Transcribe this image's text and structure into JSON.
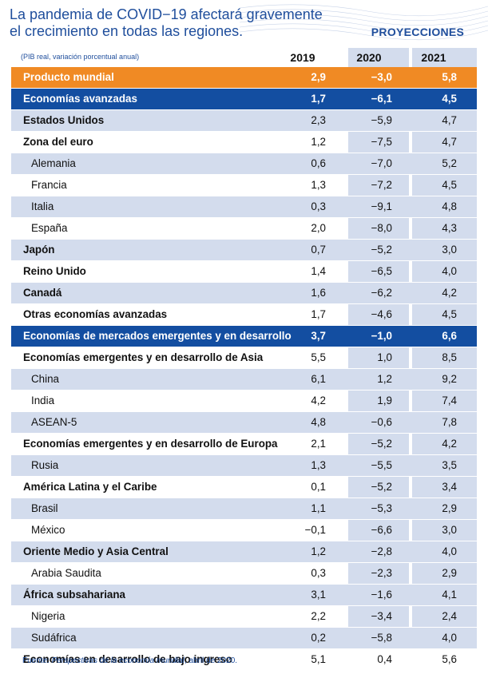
{
  "title_line1": "La pandemia de COVID-19 afectará gravemente",
  "title_line2": "el crecimiento en todas las regiones.",
  "projections_label": "PROYECCIONES",
  "unit_note": "(PIB real, variación porcentual anual)",
  "source_prefix": "Fuente: ",
  "source_title": "Perspectivas de la economía mundial",
  "source_suffix": ", abril de 2020.",
  "colors": {
    "world": "#f08a24",
    "highlight": "#134ea1",
    "shade": "#d3dced",
    "text_blue": "#1f4e9c"
  },
  "chart_data": {
    "type": "table",
    "columns": [
      "2019",
      "2020",
      "2021"
    ],
    "rows": [
      {
        "label": "Producto mundial",
        "values": [
          "2,9",
          "-3,0",
          "5,8"
        ],
        "style": "world"
      },
      {
        "label": "Economías avanzadas",
        "values": [
          "1,7",
          "-6,1",
          "4,5"
        ],
        "style": "adv"
      },
      {
        "label": "Estados Unidos",
        "values": [
          "2,3",
          "-5,9",
          "4,7"
        ],
        "style": "bold"
      },
      {
        "label": "Zona del euro",
        "values": [
          "1,2",
          "-7,5",
          "4,7"
        ],
        "style": "bold"
      },
      {
        "label": "Alemania",
        "values": [
          "0,6",
          "-7,0",
          "5,2"
        ],
        "style": "sub"
      },
      {
        "label": "Francia",
        "values": [
          "1,3",
          "-7,2",
          "4,5"
        ],
        "style": "sub"
      },
      {
        "label": "Italia",
        "values": [
          "0,3",
          "-9,1",
          "4,8"
        ],
        "style": "sub"
      },
      {
        "label": "España",
        "values": [
          "2,0",
          "-8,0",
          "4,3"
        ],
        "style": "sub"
      },
      {
        "label": "Japón",
        "values": [
          "0,7",
          "-5,2",
          "3,0"
        ],
        "style": "bold"
      },
      {
        "label": "Reino Unido",
        "values": [
          "1,4",
          "-6,5",
          "4,0"
        ],
        "style": "bold"
      },
      {
        "label": "Canadá",
        "values": [
          "1,6",
          "-6,2",
          "4,2"
        ],
        "style": "bold"
      },
      {
        "label": "Otras economías avanzadas",
        "values": [
          "1,7",
          "-4,6",
          "4,5"
        ],
        "style": "bold"
      },
      {
        "label": "Economías de mercados emergentes y en desarrollo",
        "values": [
          "3,7",
          "-1,0",
          "6,6"
        ],
        "style": "adv"
      },
      {
        "label": "Economías emergentes y en desarrollo de Asia",
        "values": [
          "5,5",
          "1,0",
          "8,5"
        ],
        "style": "bold"
      },
      {
        "label": "China",
        "values": [
          "6,1",
          "1,2",
          "9,2"
        ],
        "style": "sub"
      },
      {
        "label": "India",
        "values": [
          "4,2",
          "1,9",
          "7,4"
        ],
        "style": "sub"
      },
      {
        "label": "ASEAN-5",
        "values": [
          "4,8",
          "-0,6",
          "7,8"
        ],
        "style": "sub"
      },
      {
        "label": "Economías emergentes y en desarrollo de Europa",
        "values": [
          "2,1",
          "-5,2",
          "4,2"
        ],
        "style": "bold"
      },
      {
        "label": "Rusia",
        "values": [
          "1,3",
          "-5,5",
          "3,5"
        ],
        "style": "sub"
      },
      {
        "label": "América Latina y el Caribe",
        "values": [
          "0,1",
          "-5,2",
          "3,4"
        ],
        "style": "bold"
      },
      {
        "label": "Brasil",
        "values": [
          "1,1",
          "-5,3",
          "2,9"
        ],
        "style": "sub"
      },
      {
        "label": "México",
        "values": [
          "-0,1",
          "-6,6",
          "3,0"
        ],
        "style": "sub"
      },
      {
        "label": "Oriente Medio y Asia Central",
        "values": [
          "1,2",
          "-2,8",
          "4,0"
        ],
        "style": "bold"
      },
      {
        "label": "Arabia Saudita",
        "values": [
          "0,3",
          "-2,3",
          "2,9"
        ],
        "style": "sub"
      },
      {
        "label": "África subsahariana",
        "values": [
          "3,1",
          "-1,6",
          "4,1"
        ],
        "style": "bold"
      },
      {
        "label": "Nigeria",
        "values": [
          "2,2",
          "-3,4",
          "2,4"
        ],
        "style": "sub"
      },
      {
        "label": "Sudáfrica",
        "values": [
          "0,2",
          "-5,8",
          "4,0"
        ],
        "style": "sub"
      },
      {
        "label": "Economías en desarrollo de bajo ingreso",
        "values": [
          "5,1",
          "0,4",
          "5,6"
        ],
        "style": "bold"
      }
    ]
  }
}
